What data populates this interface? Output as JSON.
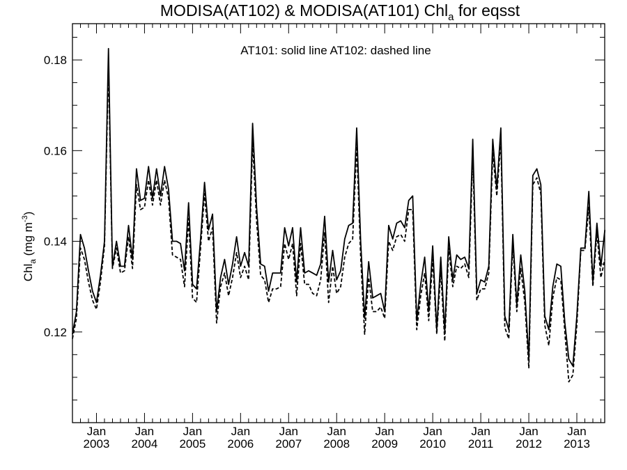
{
  "chart_data": {
    "type": "line",
    "title_main": "MODISA(AT102) & MODISA(AT101)  Chl",
    "title_sub": "a",
    "title_tail": " for eqsst",
    "ylabel_main": "Chl",
    "ylabel_sub": "a",
    "ylabel_unit": " (mg m",
    "ylabel_sup": "-3",
    "ylabel_close": ")",
    "annotation": "AT101: solid line   AT102: dashed line",
    "ylim": [
      0.1,
      0.188
    ],
    "yticks": [
      "0.12",
      "0.14",
      "0.16",
      "0.18"
    ],
    "ytick_values": [
      0.12,
      0.14,
      0.16,
      0.18
    ],
    "xlim": [
      2002.5,
      2013.58
    ],
    "xticks_month": [
      "Jan",
      "Jan",
      "Jan",
      "Jan",
      "Jan",
      "Jan",
      "Jan",
      "Jan",
      "Jan",
      "Jan",
      "Jan"
    ],
    "xticks_year": [
      "2003",
      "2004",
      "2005",
      "2006",
      "2007",
      "2008",
      "2009",
      "2010",
      "2011",
      "2012",
      "2013"
    ],
    "xtick_values": [
      2003,
      2004,
      2005,
      2006,
      2007,
      2008,
      2009,
      2010,
      2011,
      2012,
      2013
    ],
    "series": [
      {
        "name": "AT101",
        "style": "solid",
        "x": [
          2002.5,
          2002.583,
          2002.667,
          2002.75,
          2002.833,
          2002.917,
          2003.0,
          2003.083,
          2003.167,
          2003.25,
          2003.333,
          2003.417,
          2003.5,
          2003.583,
          2003.667,
          2003.75,
          2003.833,
          2003.917,
          2004.0,
          2004.083,
          2004.167,
          2004.25,
          2004.333,
          2004.417,
          2004.5,
          2004.583,
          2004.667,
          2004.75,
          2004.833,
          2004.917,
          2005.0,
          2005.083,
          2005.167,
          2005.25,
          2005.333,
          2005.417,
          2005.5,
          2005.583,
          2005.667,
          2005.75,
          2005.833,
          2005.917,
          2006.0,
          2006.083,
          2006.167,
          2006.25,
          2006.333,
          2006.417,
          2006.5,
          2006.583,
          2006.667,
          2006.75,
          2006.833,
          2006.917,
          2007.0,
          2007.083,
          2007.167,
          2007.25,
          2007.333,
          2007.417,
          2007.5,
          2007.583,
          2007.667,
          2007.75,
          2007.833,
          2007.917,
          2008.0,
          2008.083,
          2008.167,
          2008.25,
          2008.333,
          2008.417,
          2008.5,
          2008.583,
          2008.667,
          2008.75,
          2008.833,
          2008.917,
          2009.0,
          2009.083,
          2009.167,
          2009.25,
          2009.333,
          2009.417,
          2009.5,
          2009.583,
          2009.667,
          2009.75,
          2009.833,
          2009.917,
          2010.0,
          2010.083,
          2010.167,
          2010.25,
          2010.333,
          2010.417,
          2010.5,
          2010.583,
          2010.667,
          2010.75,
          2010.833,
          2010.917,
          2011.0,
          2011.083,
          2011.167,
          2011.25,
          2011.333,
          2011.417,
          2011.5,
          2011.583,
          2011.667,
          2011.75,
          2011.833,
          2011.917,
          2012.0,
          2012.083,
          2012.167,
          2012.25,
          2012.333,
          2012.417,
          2012.5,
          2012.583,
          2012.667,
          2012.75,
          2012.833,
          2012.917,
          2013.0,
          2013.083,
          2013.167,
          2013.25,
          2013.333,
          2013.417,
          2013.5,
          2013.583
        ],
        "values": [
          0.1195,
          0.1245,
          0.1415,
          0.1385,
          0.1335,
          0.129,
          0.1265,
          0.1325,
          0.14,
          0.1825,
          0.1345,
          0.14,
          0.1345,
          0.1345,
          0.1435,
          0.136,
          0.156,
          0.149,
          0.1495,
          0.1565,
          0.1495,
          0.156,
          0.15,
          0.1565,
          0.1515,
          0.14,
          0.14,
          0.1395,
          0.1335,
          0.1485,
          0.1305,
          0.1295,
          0.1405,
          0.153,
          0.1425,
          0.146,
          0.1245,
          0.132,
          0.136,
          0.1305,
          0.135,
          0.141,
          0.1345,
          0.1375,
          0.1345,
          0.166,
          0.1475,
          0.135,
          0.1345,
          0.129,
          0.133,
          0.133,
          0.133,
          0.143,
          0.139,
          0.143,
          0.131,
          0.143,
          0.133,
          0.1335,
          0.133,
          0.1325,
          0.135,
          0.1455,
          0.131,
          0.138,
          0.1315,
          0.1335,
          0.1405,
          0.1435,
          0.144,
          0.165,
          0.14,
          0.123,
          0.1355,
          0.1275,
          0.128,
          0.1285,
          0.1245,
          0.1435,
          0.1405,
          0.144,
          0.1445,
          0.143,
          0.149,
          0.15,
          0.1225,
          0.1305,
          0.1365,
          0.1245,
          0.139,
          0.1205,
          0.1365,
          0.12,
          0.141,
          0.1315,
          0.137,
          0.136,
          0.1365,
          0.134,
          0.1625,
          0.1285,
          0.1315,
          0.131,
          0.1345,
          0.1625,
          0.1515,
          0.165,
          0.1235,
          0.1205,
          0.1415,
          0.126,
          0.137,
          0.129,
          0.114,
          0.1545,
          0.156,
          0.1525,
          0.1235,
          0.1205,
          0.13,
          0.135,
          0.1345,
          0.122,
          0.114,
          0.1125,
          0.1235,
          0.1385,
          0.1385,
          0.151,
          0.131,
          0.144,
          0.1345,
          0.1425
        ]
      },
      {
        "name": "AT102",
        "style": "dashed",
        "x": [
          2002.5,
          2002.583,
          2002.667,
          2002.75,
          2002.833,
          2002.917,
          2003.0,
          2003.083,
          2003.167,
          2003.25,
          2003.333,
          2003.417,
          2003.5,
          2003.583,
          2003.667,
          2003.75,
          2003.833,
          2003.917,
          2004.0,
          2004.083,
          2004.167,
          2004.25,
          2004.333,
          2004.417,
          2004.5,
          2004.583,
          2004.667,
          2004.75,
          2004.833,
          2004.917,
          2005.0,
          2005.083,
          2005.167,
          2005.25,
          2005.333,
          2005.417,
          2005.5,
          2005.583,
          2005.667,
          2005.75,
          2005.833,
          2005.917,
          2006.0,
          2006.083,
          2006.167,
          2006.25,
          2006.333,
          2006.417,
          2006.5,
          2006.583,
          2006.667,
          2006.75,
          2006.833,
          2006.917,
          2007.0,
          2007.083,
          2007.167,
          2007.25,
          2007.333,
          2007.417,
          2007.5,
          2007.583,
          2007.667,
          2007.75,
          2007.833,
          2007.917,
          2008.0,
          2008.083,
          2008.167,
          2008.25,
          2008.333,
          2008.417,
          2008.5,
          2008.583,
          2008.667,
          2008.75,
          2008.833,
          2008.917,
          2009.0,
          2009.083,
          2009.167,
          2009.25,
          2009.333,
          2009.417,
          2009.5,
          2009.583,
          2009.667,
          2009.75,
          2009.833,
          2009.917,
          2010.0,
          2010.083,
          2010.167,
          2010.25,
          2010.333,
          2010.417,
          2010.5,
          2010.583,
          2010.667,
          2010.75,
          2010.833,
          2010.917,
          2011.0,
          2011.083,
          2011.167,
          2011.25,
          2011.333,
          2011.417,
          2011.5,
          2011.583,
          2011.667,
          2011.75,
          2011.833,
          2011.917,
          2012.0,
          2012.083,
          2012.167,
          2012.25,
          2012.333,
          2012.417,
          2012.5,
          2012.583,
          2012.667,
          2012.75,
          2012.833,
          2012.917,
          2013.0,
          2013.083,
          2013.167,
          2013.25,
          2013.333,
          2013.417,
          2013.5,
          2013.583
        ],
        "values": [
          0.1185,
          0.123,
          0.1385,
          0.136,
          0.131,
          0.127,
          0.125,
          0.131,
          0.139,
          0.179,
          0.134,
          0.1385,
          0.133,
          0.1335,
          0.141,
          0.134,
          0.1525,
          0.147,
          0.1475,
          0.1535,
          0.148,
          0.1535,
          0.148,
          0.1535,
          0.1495,
          0.137,
          0.1365,
          0.136,
          0.13,
          0.145,
          0.1275,
          0.1265,
          0.1385,
          0.1505,
          0.14,
          0.143,
          0.122,
          0.13,
          0.133,
          0.128,
          0.132,
          0.1375,
          0.132,
          0.1345,
          0.1315,
          0.162,
          0.1445,
          0.1325,
          0.1315,
          0.1265,
          0.1295,
          0.1295,
          0.13,
          0.1395,
          0.136,
          0.1395,
          0.128,
          0.1395,
          0.1305,
          0.1305,
          0.1285,
          0.128,
          0.1315,
          0.142,
          0.1265,
          0.1345,
          0.1285,
          0.13,
          0.1365,
          0.1395,
          0.1405,
          0.161,
          0.1365,
          0.1195,
          0.132,
          0.1245,
          0.1245,
          0.1255,
          0.123,
          0.14,
          0.138,
          0.141,
          0.1415,
          0.14,
          0.147,
          0.147,
          0.1205,
          0.128,
          0.133,
          0.1225,
          0.136,
          0.1195,
          0.1335,
          0.118,
          0.1385,
          0.13,
          0.1345,
          0.134,
          0.135,
          0.132,
          0.159,
          0.127,
          0.1295,
          0.1295,
          0.133,
          0.1595,
          0.15,
          0.1625,
          0.121,
          0.1185,
          0.1395,
          0.1245,
          0.134,
          0.1265,
          0.112,
          0.1525,
          0.154,
          0.1505,
          0.1215,
          0.117,
          0.1275,
          0.132,
          0.1315,
          0.12,
          0.109,
          0.1105,
          0.1215,
          0.138,
          0.138,
          0.1475,
          0.13,
          0.142,
          0.132,
          0.136
        ]
      }
    ]
  }
}
